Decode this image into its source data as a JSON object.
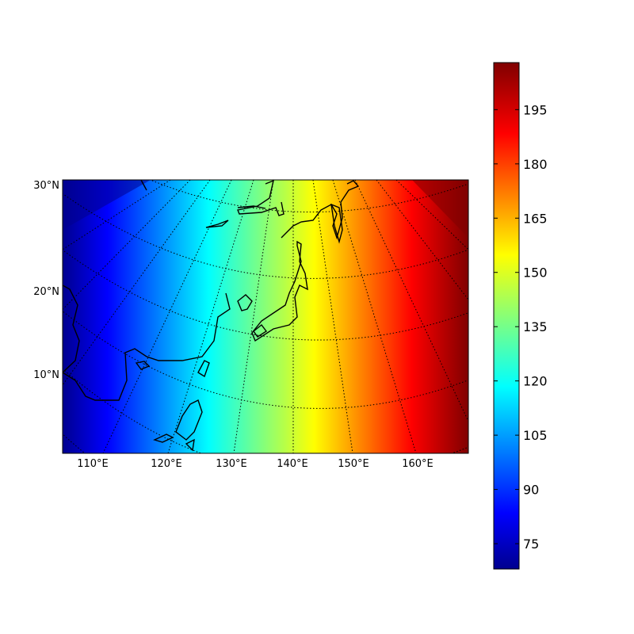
{
  "map": {
    "projection": "lambert-conformal",
    "lat_labels": [
      "30°N",
      "20°N",
      "10°N"
    ],
    "lon_labels": [
      "110°E",
      "120°E",
      "130°E",
      "140°E",
      "150°E",
      "160°E"
    ],
    "graticule": "dotted",
    "field": "smooth gradient increasing from northwest (low) to northeast (high)"
  },
  "colorbar": {
    "colormap": "jet",
    "range": [
      68,
      208
    ],
    "ticks": [
      "75",
      "90",
      "105",
      "120",
      "135",
      "150",
      "165",
      "180",
      "195"
    ],
    "orientation": "vertical",
    "placement": "right"
  }
}
